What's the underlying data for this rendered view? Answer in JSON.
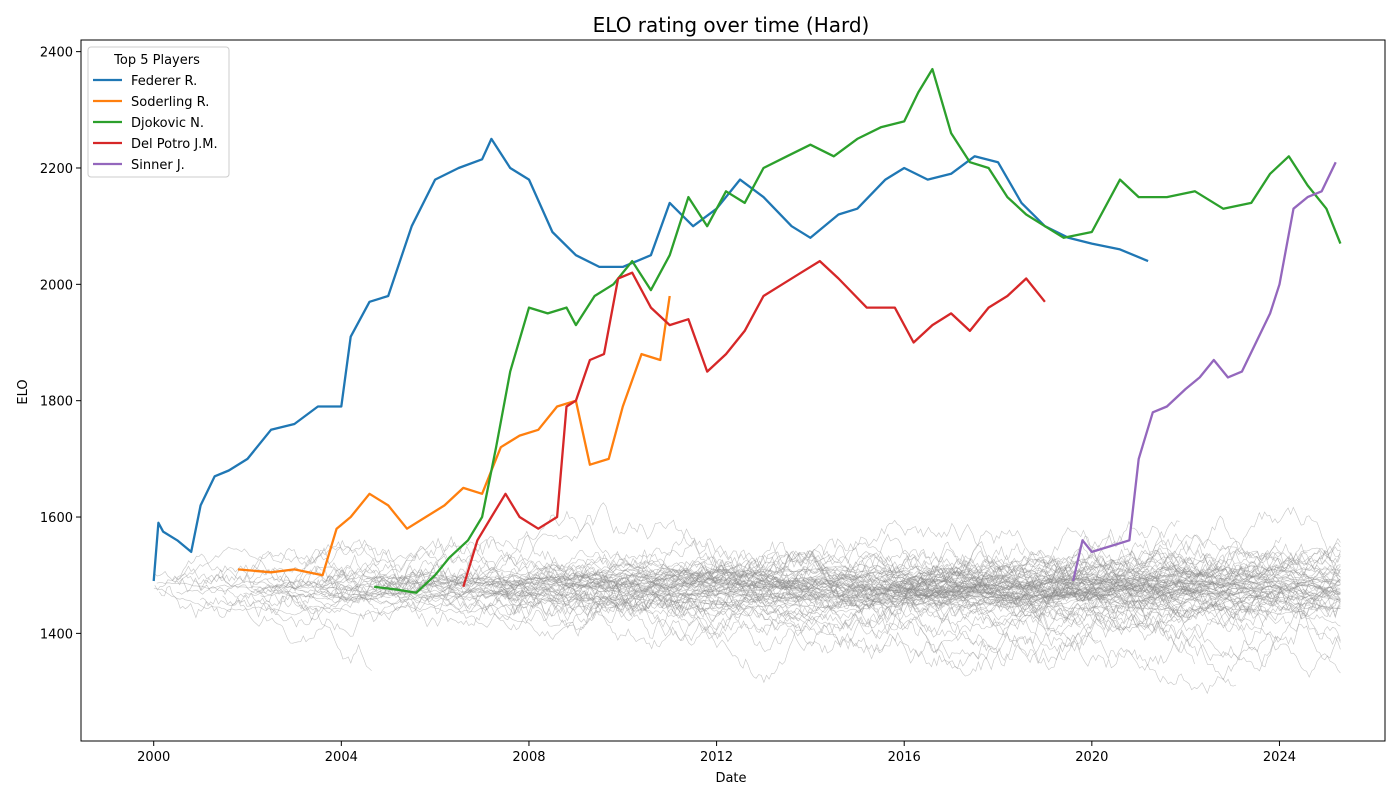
{
  "chart_data": {
    "type": "line",
    "title": "ELO rating over time (Hard)",
    "xlabel": "Date",
    "ylabel": "ELO",
    "xlim": [
      1998.45,
      2026.25
    ],
    "ylim": [
      1215,
      2420
    ],
    "x_ticks": [
      2000,
      2004,
      2008,
      2012,
      2016,
      2020,
      2024
    ],
    "x_tick_labels": [
      "2000",
      "2004",
      "2008",
      "2012",
      "2016",
      "2020",
      "2024"
    ],
    "y_ticks": [
      1400,
      1600,
      1800,
      2000,
      2200,
      2400
    ],
    "y_tick_labels": [
      "1400",
      "1600",
      "1800",
      "2000",
      "2200",
      "2400"
    ],
    "grid": false,
    "legend": {
      "title": "Top 5 Players",
      "placement": "top-left"
    },
    "background_series_color": "#8c8c8c",
    "series": [
      {
        "name": "Federer R.",
        "color": "#1f77b4",
        "x": [
          2000.0,
          2000.1,
          2000.2,
          2000.5,
          2000.8,
          2001.0,
          2001.3,
          2001.6,
          2002.0,
          2002.5,
          2003.0,
          2003.5,
          2004.0,
          2004.2,
          2004.6,
          2005.0,
          2005.5,
          2006.0,
          2006.5,
          2007.0,
          2007.2,
          2007.6,
          2008.0,
          2008.5,
          2009.0,
          2009.5,
          2010.0,
          2010.6,
          2011.0,
          2011.5,
          2012.0,
          2012.5,
          2013.0,
          2013.6,
          2014.0,
          2014.6,
          2015.0,
          2015.6,
          2016.0,
          2016.5,
          2017.0,
          2017.5,
          2018.0,
          2018.5,
          2019.0,
          2019.5,
          2020.0,
          2020.6,
          2021.2
        ],
        "y": [
          1490,
          1590,
          1575,
          1560,
          1540,
          1620,
          1670,
          1680,
          1700,
          1750,
          1760,
          1790,
          1790,
          1910,
          1970,
          1980,
          2100,
          2180,
          2200,
          2215,
          2250,
          2200,
          2180,
          2090,
          2050,
          2030,
          2030,
          2050,
          2140,
          2100,
          2130,
          2180,
          2150,
          2100,
          2080,
          2120,
          2130,
          2180,
          2200,
          2180,
          2190,
          2220,
          2210,
          2140,
          2100,
          2080,
          2070,
          2060,
          2040
        ]
      },
      {
        "name": "Soderling R.",
        "color": "#ff7f0e",
        "x": [
          2001.8,
          2002.5,
          2003.0,
          2003.6,
          2003.9,
          2004.2,
          2004.6,
          2005.0,
          2005.4,
          2005.8,
          2006.2,
          2006.6,
          2007.0,
          2007.4,
          2007.8,
          2008.2,
          2008.6,
          2009.0,
          2009.3,
          2009.7,
          2010.0,
          2010.4,
          2010.8,
          2011.0
        ],
        "y": [
          1510,
          1505,
          1510,
          1500,
          1580,
          1600,
          1640,
          1620,
          1580,
          1600,
          1620,
          1650,
          1640,
          1720,
          1740,
          1750,
          1790,
          1800,
          1690,
          1700,
          1790,
          1880,
          1870,
          1980
        ]
      },
      {
        "name": "Djokovic N.",
        "color": "#2ca02c",
        "x": [
          2004.7,
          2005.2,
          2005.6,
          2006.0,
          2006.3,
          2006.7,
          2007.0,
          2007.3,
          2007.6,
          2008.0,
          2008.4,
          2008.8,
          2009.0,
          2009.4,
          2009.8,
          2010.2,
          2010.6,
          2011.0,
          2011.4,
          2011.8,
          2012.2,
          2012.6,
          2013.0,
          2013.5,
          2014.0,
          2014.5,
          2015.0,
          2015.5,
          2016.0,
          2016.3,
          2016.6,
          2017.0,
          2017.4,
          2017.8,
          2018.2,
          2018.6,
          2019.0,
          2019.4,
          2020.0,
          2020.6,
          2021.0,
          2021.6,
          2022.2,
          2022.8,
          2023.4,
          2023.8,
          2024.2,
          2024.6,
          2025.0,
          2025.3
        ],
        "y": [
          1480,
          1475,
          1470,
          1500,
          1530,
          1560,
          1600,
          1720,
          1850,
          1960,
          1950,
          1960,
          1930,
          1980,
          2000,
          2040,
          1990,
          2050,
          2150,
          2100,
          2160,
          2140,
          2200,
          2220,
          2240,
          2220,
          2250,
          2270,
          2280,
          2330,
          2370,
          2260,
          2210,
          2200,
          2150,
          2120,
          2100,
          2080,
          2090,
          2180,
          2150,
          2150,
          2160,
          2130,
          2140,
          2190,
          2220,
          2170,
          2130,
          2070
        ]
      },
      {
        "name": "Del Potro J.M.",
        "color": "#d62728",
        "x": [
          2006.6,
          2006.9,
          2007.2,
          2007.5,
          2007.8,
          2008.2,
          2008.6,
          2008.8,
          2009.0,
          2009.3,
          2009.6,
          2009.9,
          2010.2,
          2010.6,
          2011.0,
          2011.4,
          2011.8,
          2012.2,
          2012.6,
          2013.0,
          2013.4,
          2013.8,
          2014.2,
          2014.6,
          2015.2,
          2015.8,
          2016.2,
          2016.6,
          2017.0,
          2017.4,
          2017.8,
          2018.2,
          2018.6,
          2019.0
        ],
        "y": [
          1480,
          1560,
          1600,
          1640,
          1600,
          1580,
          1600,
          1790,
          1800,
          1870,
          1880,
          2010,
          2020,
          1960,
          1930,
          1940,
          1850,
          1880,
          1920,
          1980,
          2000,
          2020,
          2040,
          2010,
          1960,
          1960,
          1900,
          1930,
          1950,
          1920,
          1960,
          1980,
          2010,
          1970
        ]
      },
      {
        "name": "Sinner J.",
        "color": "#9467bd",
        "x": [
          2019.6,
          2019.8,
          2020.0,
          2020.4,
          2020.8,
          2021.0,
          2021.3,
          2021.6,
          2022.0,
          2022.3,
          2022.6,
          2022.9,
          2023.2,
          2023.5,
          2023.8,
          2024.0,
          2024.3,
          2024.6,
          2024.9,
          2025.2
        ],
        "y": [
          1490,
          1560,
          1540,
          1550,
          1560,
          1700,
          1780,
          1790,
          1820,
          1840,
          1870,
          1840,
          1850,
          1900,
          1950,
          2000,
          2130,
          2150,
          2160,
          2210
        ]
      }
    ]
  }
}
